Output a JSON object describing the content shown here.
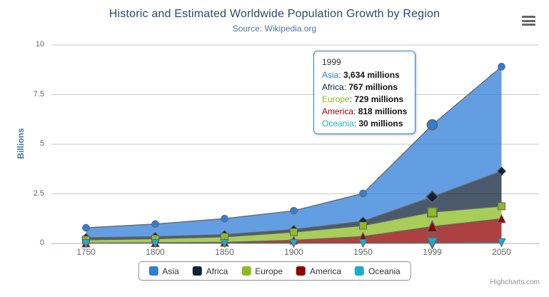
{
  "header": {
    "title": "Historic and Estimated Worldwide Population Growth by Region",
    "subtitle": "Source: Wikipedia.org"
  },
  "chart_data": {
    "type": "area",
    "stacking": "normal",
    "title": "Historic and Estimated Worldwide Population Growth by Region",
    "subtitle": "Source: Wikipedia.org",
    "categories": [
      "1750",
      "1800",
      "1850",
      "1900",
      "1950",
      "1999",
      "2050"
    ],
    "series": [
      {
        "name": "Asia",
        "color": "#2f7ed8",
        "marker": "circle",
        "values": [
          502,
          635,
          809,
          947,
          1402,
          3634,
          5268
        ]
      },
      {
        "name": "Africa",
        "color": "#0d233a",
        "marker": "diamond",
        "values": [
          106,
          107,
          111,
          133,
          221,
          767,
          1766
        ]
      },
      {
        "name": "Europe",
        "color": "#8bbc21",
        "marker": "square",
        "values": [
          163,
          203,
          276,
          408,
          547,
          729,
          628
        ]
      },
      {
        "name": "America",
        "color": "#910000",
        "marker": "triangle",
        "values": [
          18,
          31,
          54,
          156,
          339,
          818,
          1201
        ]
      },
      {
        "name": "Oceania",
        "color": "#1aadce",
        "marker": "triangle-down",
        "values": [
          2,
          2,
          2,
          6,
          13,
          30,
          46
        ]
      }
    ],
    "values_unit": "millions",
    "ylabel": "Billions",
    "yticks": [
      "0",
      "2.5",
      "5",
      "7.5",
      "10"
    ],
    "ylim": [
      0,
      10
    ],
    "grid": true,
    "legend_position": "bottom",
    "hovered_category": "1999",
    "fill_opacity": 0.75,
    "line_color": "#666666",
    "grid_color": "#c8c8c8",
    "axis_line_color": "#C0D0E0"
  },
  "tooltip": {
    "header": "1999",
    "border_color": "#2f7ed8",
    "value_suffix": "millions",
    "rows": [
      {
        "name": "Asia",
        "value": "3,634 millions"
      },
      {
        "name": "Africa",
        "value": "767 millions"
      },
      {
        "name": "Europe",
        "value": "729 millions"
      },
      {
        "name": "America",
        "value": "818 millions"
      },
      {
        "name": "Oceania",
        "value": "30 millions"
      }
    ]
  },
  "credits": "Highcharts.com",
  "context_menu": {
    "icon": "hamburger-menu-icon"
  }
}
